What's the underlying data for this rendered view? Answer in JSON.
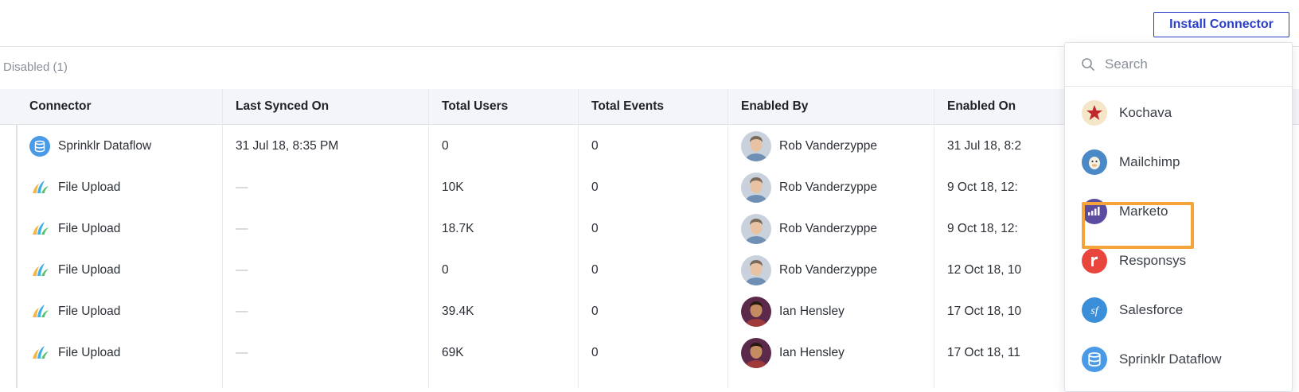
{
  "header": {
    "install_button": "Install Connector"
  },
  "tabs": {
    "disabled_label": "Disabled (1)"
  },
  "table": {
    "columns": [
      "Connector",
      "Last Synced On",
      "Total Users",
      "Total Events",
      "Enabled By",
      "Enabled On"
    ],
    "rows": [
      {
        "connector": "Sprinklr Dataflow",
        "icon": "database-icon",
        "last_synced": "31 Jul 18, 8:35 PM",
        "users": "0",
        "events": "0",
        "enabled_by": "Rob Vanderzyppe",
        "enabled_on": "31 Jul 18, 8:2"
      },
      {
        "connector": "File Upload",
        "icon": "file-upload-icon",
        "last_synced": "—",
        "users": "10K",
        "events": "0",
        "enabled_by": "Rob Vanderzyppe",
        "enabled_on": "9 Oct 18, 12:"
      },
      {
        "connector": "File Upload",
        "icon": "file-upload-icon",
        "last_synced": "—",
        "users": "18.7K",
        "events": "0",
        "enabled_by": "Rob Vanderzyppe",
        "enabled_on": "9 Oct 18, 12:"
      },
      {
        "connector": "File Upload",
        "icon": "file-upload-icon",
        "last_synced": "—",
        "users": "0",
        "events": "0",
        "enabled_by": "Rob Vanderzyppe",
        "enabled_on": "12 Oct 18, 10"
      },
      {
        "connector": "File Upload",
        "icon": "file-upload-icon",
        "last_synced": "—",
        "users": "39.4K",
        "events": "0",
        "enabled_by": "Ian Hensley",
        "enabled_on": "17 Oct 18, 10"
      },
      {
        "connector": "File Upload",
        "icon": "file-upload-icon",
        "last_synced": "—",
        "users": "69K",
        "events": "0",
        "enabled_by": "Ian Hensley",
        "enabled_on": "17 Oct 18, 11"
      }
    ]
  },
  "dropdown": {
    "search_placeholder": "Search",
    "items": [
      {
        "label": "Kochava",
        "icon": "kochava-icon"
      },
      {
        "label": "Mailchimp",
        "icon": "mailchimp-icon"
      },
      {
        "label": "Marketo",
        "icon": "marketo-icon",
        "highlighted": true
      },
      {
        "label": "Responsys",
        "icon": "responsys-icon"
      },
      {
        "label": "Salesforce",
        "icon": "salesforce-icon"
      },
      {
        "label": "Sprinklr Dataflow",
        "icon": "database-icon"
      }
    ]
  },
  "colors": {
    "accent": "#2a3ec8",
    "highlight": "#f5a33b"
  }
}
